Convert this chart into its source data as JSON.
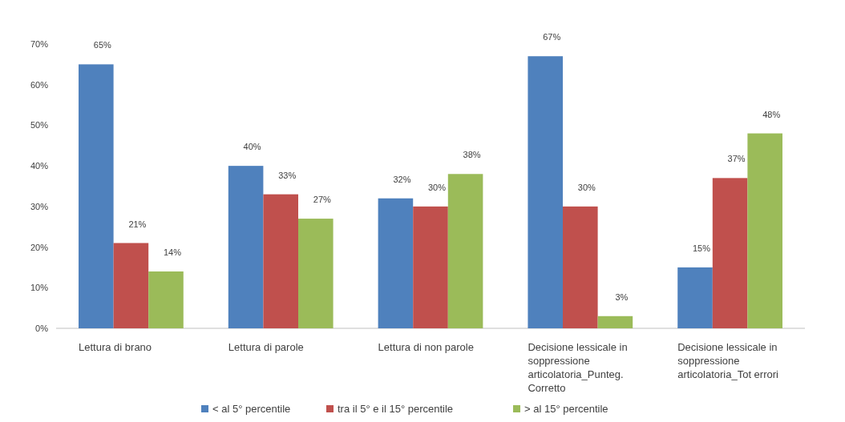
{
  "chart_data": {
    "type": "bar",
    "categories": [
      "Lettura di brano",
      "Lettura di parole",
      "Lettura di non parole",
      "Decisione lessicale in soppressione articolatoria_Punteg. Corretto",
      "Decisione lessicale in soppressione articolatoria_Tot errori"
    ],
    "series": [
      {
        "name": "< al 5° percentile",
        "color": "#4f81bd",
        "values": [
          65,
          40,
          32,
          67,
          15
        ],
        "value_labels": [
          "65%",
          "40%",
          "32%",
          "67%",
          "15%"
        ]
      },
      {
        "name": "tra il 5° e il 15° percentile",
        "color": "#c0504d",
        "values": [
          21,
          33,
          30,
          30,
          37
        ],
        "value_labels": [
          "21%",
          "33%",
          "30%",
          "30%",
          "37%"
        ]
      },
      {
        "name": "> al 15° percentile",
        "color": "#9bbb59",
        "values": [
          14,
          27,
          38,
          3,
          48
        ],
        "value_labels": [
          "14%",
          "27%",
          "38%",
          "3%",
          "48%"
        ]
      }
    ],
    "ylim": [
      0,
      70
    ],
    "yticks": [
      {
        "value": 0,
        "label": "0%"
      },
      {
        "value": 10,
        "label": "10%"
      },
      {
        "value": 20,
        "label": "20%"
      },
      {
        "value": 30,
        "label": "30%"
      },
      {
        "value": 40,
        "label": "40%"
      },
      {
        "value": 50,
        "label": "50%"
      },
      {
        "value": 60,
        "label": "60%"
      },
      {
        "value": 70,
        "label": "70%"
      }
    ],
    "legend": "bottom",
    "grid": false
  }
}
